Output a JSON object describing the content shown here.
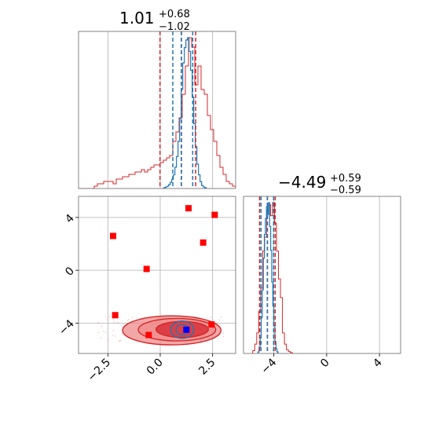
{
  "chart_data": {
    "type": "corner",
    "parameters": [
      {
        "title": {
          "median": "1.01",
          "plus": "+0.68",
          "minus": "−1.02"
        },
        "range": [
          -3.9,
          3.6
        ],
        "ticks": [
          -2.5,
          0.0,
          2.5
        ],
        "tick_labels": [
          "−2.5",
          "0.0",
          "2.5"
        ],
        "quantile_lines": {
          "red": [
            -0.01,
            1.01,
            1.69
          ],
          "blue": [
            0.6,
            1.01,
            1.55
          ]
        },
        "hist_red": {
          "edges_start": -3.9,
          "bin_width": 0.15,
          "counts": [
            0,
            0,
            0,
            0,
            0,
            1,
            2,
            2,
            3,
            3,
            3,
            2,
            4,
            4,
            5,
            5,
            6,
            6,
            7,
            7,
            8,
            7,
            8,
            9,
            10,
            10,
            11,
            12,
            13,
            14,
            20,
            24,
            30,
            40,
            52,
            64,
            60,
            44,
            52,
            42,
            40,
            31,
            25,
            20,
            14,
            9,
            6,
            3,
            2,
            1
          ]
        },
        "hist_blue": {
          "edges_start": 0.1,
          "bin_width": 0.075,
          "counts": [
            0,
            1,
            2,
            3,
            5,
            8,
            12,
            18,
            28,
            42,
            62,
            92,
            130,
            165,
            185,
            195,
            198,
            180,
            155,
            120,
            85,
            55,
            32,
            18,
            9,
            4,
            2,
            1
          ]
        }
      },
      {
        "title": {
          "median": "−4.49",
          "plus": "+0.59",
          "minus": "−0.59"
        },
        "range": [
          -6.3,
          5.6
        ],
        "ticks": [
          -4,
          0,
          4
        ],
        "tick_labels": [
          "−4",
          "0",
          "4"
        ],
        "quantile_lines": {
          "red": [
            -5.08,
            -4.49,
            -3.9
          ],
          "blue": [
            -4.97,
            -4.49,
            -4.02
          ]
        },
        "hist_red": {
          "edges_start": -5.6,
          "bin_width": 0.15,
          "counts": [
            3,
            10,
            22,
            45,
            70,
            110,
            125,
            150,
            160,
            148,
            162,
            140,
            110,
            80,
            60,
            22,
            10,
            4,
            2,
            1
          ]
        },
        "hist_blue": {
          "edges_start": -5.2,
          "bin_width": 0.08,
          "counts": [
            2,
            8,
            20,
            45,
            80,
            120,
            150,
            170,
            185,
            175,
            190,
            160,
            130,
            90,
            60,
            35,
            15,
            6,
            2
          ]
        }
      }
    ],
    "scatter_panel": {
      "xlim": [
        -3.9,
        3.6
      ],
      "ylim": [
        -6.3,
        5.6
      ],
      "red_markers": [
        [
          -2.25,
          2.6
        ],
        [
          -2.15,
          -3.4
        ],
        [
          -0.65,
          0.1
        ],
        [
          -0.55,
          -4.9
        ],
        [
          1.35,
          4.7
        ],
        [
          2.05,
          2.1
        ],
        [
          2.6,
          4.2
        ],
        [
          2.45,
          -4.1
        ]
      ],
      "blue_marker": [
        1.25,
        -4.5
      ],
      "red_contours": [
        {
          "cx": 0.55,
          "cy": -4.55,
          "rx": 2.35,
          "ry": 1.1
        },
        {
          "cx": 0.8,
          "cy": -4.5,
          "rx": 1.85,
          "ry": 0.85
        },
        {
          "cx": 1.05,
          "cy": -4.48,
          "rx": 1.25,
          "ry": 0.6
        }
      ],
      "blue_contours": [
        {
          "cx": 1.05,
          "cy": -4.5,
          "rx": 0.55,
          "ry": 0.65
        },
        {
          "cx": 1.05,
          "cy": -4.5,
          "rx": 0.3,
          "ry": 0.38
        }
      ]
    },
    "colors": {
      "red": "#d62728",
      "red_fill": "#ef8b8b",
      "red_fill_inner": "#d9363e",
      "blue": "#1f77b4",
      "marker_red": "#ff0000",
      "marker_blue": "#0000ff",
      "grid": "#b0b0b0"
    },
    "grid": true
  }
}
